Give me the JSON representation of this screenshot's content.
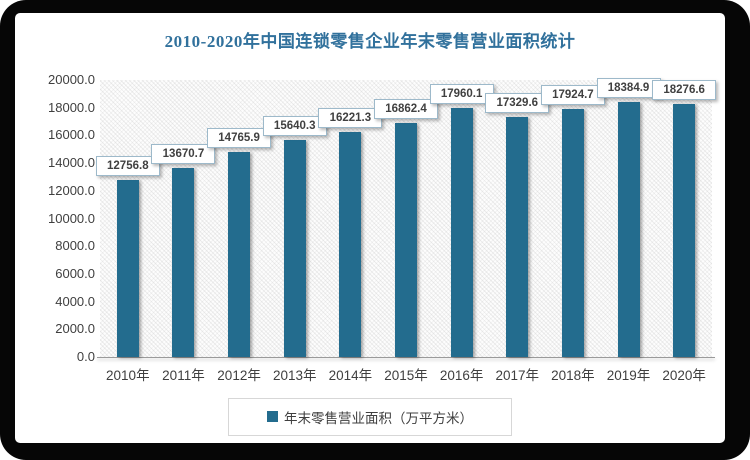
{
  "title": "2010-2020年中国连锁零售企业年末零售营业面积统计",
  "colors": {
    "title": "#31719c",
    "bar": "#236c8e",
    "axis_text": "#3f3f3f",
    "label_box_border": "#9db9ca",
    "legend_border": "#d7d7d7",
    "frame": "#060606"
  },
  "chart_data": {
    "type": "bar",
    "title": "2010-2020年中国连锁零售企业年末零售营业面积统计",
    "categories": [
      "2010年",
      "2011年",
      "2012年",
      "2013年",
      "2014年",
      "2015年",
      "2016年",
      "2017年",
      "2018年",
      "2019年",
      "2020年"
    ],
    "series": [
      {
        "name": "年末零售营业面积（万平方米）",
        "values": [
          12756.8,
          13670.7,
          14765.9,
          15640.3,
          16221.3,
          16862.4,
          17960.1,
          17329.6,
          17924.7,
          18384.9,
          18276.6
        ]
      }
    ],
    "xlabel": "",
    "ylabel": "",
    "ylim": [
      0,
      20000
    ],
    "ytick_step": 2000,
    "ytick_decimals": 1,
    "grid": false,
    "data_labels": true,
    "legend_position": "bottom",
    "plot_background": "diagonal-hatch"
  }
}
